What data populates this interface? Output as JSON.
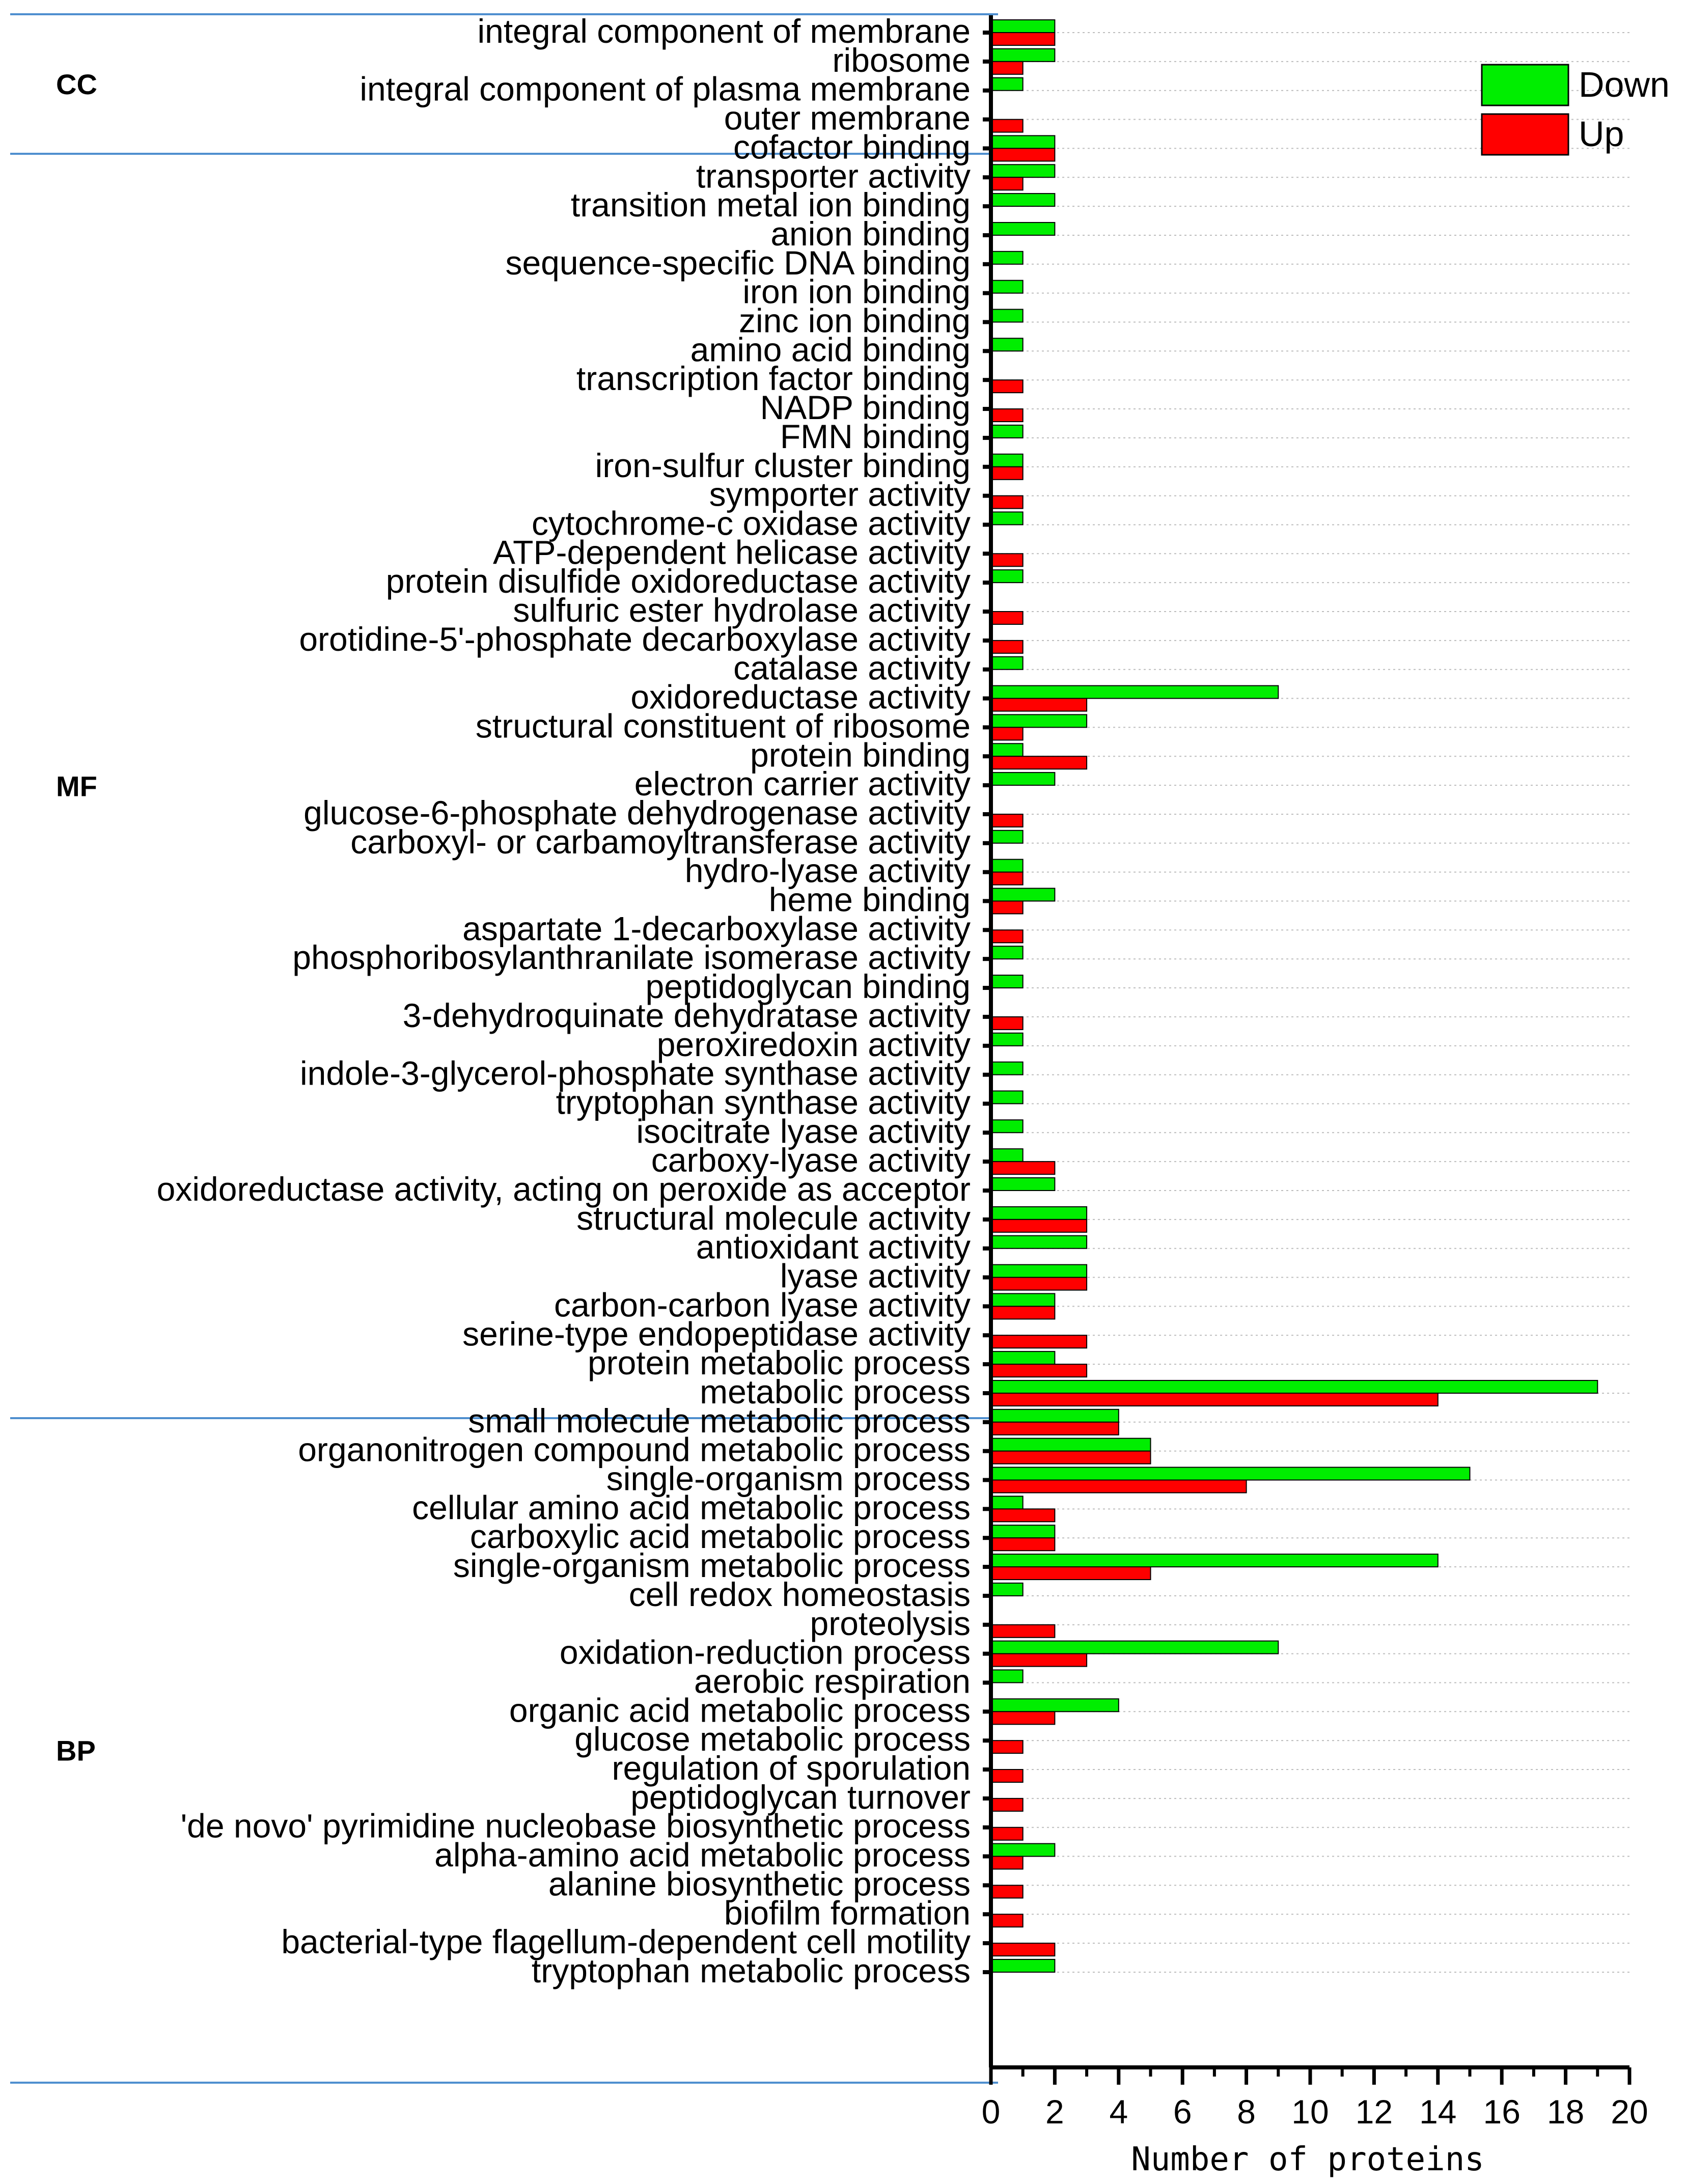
{
  "chart_data": {
    "type": "bar",
    "orientation": "horizontal",
    "xlabel": "Number of proteins",
    "xlim": [
      0,
      20
    ],
    "xticks": [
      0,
      2,
      4,
      6,
      8,
      10,
      12,
      14,
      16,
      18,
      20
    ],
    "legend": {
      "placement": "top-right",
      "entries": [
        {
          "name": "Down",
          "color": "#00ee00"
        },
        {
          "name": "Up",
          "color": "#ff0000"
        }
      ]
    },
    "series": [
      {
        "name": "Down",
        "color": "#00ee00"
      },
      {
        "name": "Up",
        "color": "#ff0000"
      }
    ],
    "groups": [
      {
        "name": "CC",
        "categories": [
          {
            "label": "integral component of membrane",
            "down": 2,
            "up": 2
          },
          {
            "label": "ribosome",
            "down": 2,
            "up": 1
          },
          {
            "label": "integral component of plasma membrane",
            "down": 1,
            "up": 0
          },
          {
            "label": "outer membrane",
            "down": 0,
            "up": 1
          }
        ]
      },
      {
        "name": "MF",
        "categories": [
          {
            "label": "cofactor binding",
            "down": 2,
            "up": 2
          },
          {
            "label": "transporter activity",
            "down": 2,
            "up": 1
          },
          {
            "label": "transition metal ion binding",
            "down": 2,
            "up": 0
          },
          {
            "label": "anion binding",
            "down": 2,
            "up": 0
          },
          {
            "label": "sequence-specific DNA binding",
            "down": 1,
            "up": 0
          },
          {
            "label": "iron ion binding",
            "down": 1,
            "up": 0
          },
          {
            "label": "zinc ion binding",
            "down": 1,
            "up": 0
          },
          {
            "label": "amino acid binding",
            "down": 1,
            "up": 0
          },
          {
            "label": "transcription factor binding",
            "down": 0,
            "up": 1
          },
          {
            "label": "NADP binding",
            "down": 0,
            "up": 1
          },
          {
            "label": "FMN binding",
            "down": 1,
            "up": 0
          },
          {
            "label": "iron-sulfur cluster binding",
            "down": 1,
            "up": 1
          },
          {
            "label": "symporter activity",
            "down": 0,
            "up": 1
          },
          {
            "label": "cytochrome-c oxidase activity",
            "down": 1,
            "up": 0
          },
          {
            "label": "ATP-dependent helicase activity",
            "down": 0,
            "up": 1
          },
          {
            "label": "protein disulfide oxidoreductase activity",
            "down": 1,
            "up": 0
          },
          {
            "label": "sulfuric ester hydrolase activity",
            "down": 0,
            "up": 1
          },
          {
            "label": "orotidine-5'-phosphate decarboxylase activity",
            "down": 0,
            "up": 1
          },
          {
            "label": "catalase activity",
            "down": 1,
            "up": 0
          },
          {
            "label": "oxidoreductase activity",
            "down": 9,
            "up": 3
          },
          {
            "label": "structural constituent of ribosome",
            "down": 3,
            "up": 1
          },
          {
            "label": "protein binding",
            "down": 1,
            "up": 3
          },
          {
            "label": "electron carrier activity",
            "down": 2,
            "up": 0
          },
          {
            "label": "glucose-6-phosphate dehydrogenase activity",
            "down": 0,
            "up": 1
          },
          {
            "label": "carboxyl- or carbamoyltransferase activity",
            "down": 1,
            "up": 0
          },
          {
            "label": "hydro-lyase activity",
            "down": 1,
            "up": 1
          },
          {
            "label": "heme binding",
            "down": 2,
            "up": 1
          },
          {
            "label": "aspartate 1-decarboxylase activity",
            "down": 0,
            "up": 1
          },
          {
            "label": "phosphoribosylanthranilate isomerase activity",
            "down": 1,
            "up": 0
          },
          {
            "label": "peptidoglycan binding",
            "down": 1,
            "up": 0
          },
          {
            "label": "3-dehydroquinate dehydratase activity",
            "down": 0,
            "up": 1
          },
          {
            "label": "peroxiredoxin activity",
            "down": 1,
            "up": 0
          },
          {
            "label": "indole-3-glycerol-phosphate synthase activity",
            "down": 1,
            "up": 0
          },
          {
            "label": "tryptophan synthase activity",
            "down": 1,
            "up": 0
          },
          {
            "label": "isocitrate lyase activity",
            "down": 1,
            "up": 0
          },
          {
            "label": "carboxy-lyase activity",
            "down": 1,
            "up": 2
          },
          {
            "label": "oxidoreductase activity, acting on peroxide as acceptor",
            "down": 2,
            "up": 0
          },
          {
            "label": "structural molecule activity",
            "down": 3,
            "up": 3
          },
          {
            "label": "antioxidant activity",
            "down": 3,
            "up": 0
          },
          {
            "label": "lyase activity",
            "down": 3,
            "up": 3
          },
          {
            "label": "carbon-carbon lyase activity",
            "down": 2,
            "up": 2
          },
          {
            "label": "serine-type endopeptidase activity",
            "down": 0,
            "up": 3
          }
        ]
      },
      {
        "name": "BP",
        "categories": [
          {
            "label": "protein metabolic process",
            "down": 2,
            "up": 3
          },
          {
            "label": "metabolic process",
            "down": 19,
            "up": 14
          },
          {
            "label": "small molecule metabolic process",
            "down": 4,
            "up": 4
          },
          {
            "label": "organonitrogen compound metabolic process",
            "down": 5,
            "up": 5
          },
          {
            "label": "single-organism process",
            "down": 15,
            "up": 8
          },
          {
            "label": "cellular amino acid metabolic process",
            "down": 1,
            "up": 2
          },
          {
            "label": "carboxylic acid metabolic process",
            "down": 2,
            "up": 2
          },
          {
            "label": "single-organism metabolic process",
            "down": 14,
            "up": 5
          },
          {
            "label": "cell redox homeostasis",
            "down": 1,
            "up": 0
          },
          {
            "label": "proteolysis",
            "down": 0,
            "up": 2
          },
          {
            "label": "oxidation-reduction process",
            "down": 9,
            "up": 3
          },
          {
            "label": "aerobic respiration",
            "down": 1,
            "up": 0
          },
          {
            "label": "organic acid metabolic process",
            "down": 4,
            "up": 2
          },
          {
            "label": "glucose metabolic process",
            "down": 0,
            "up": 1
          },
          {
            "label": "regulation of sporulation",
            "down": 0,
            "up": 1
          },
          {
            "label": "peptidoglycan turnover",
            "down": 0,
            "up": 1
          },
          {
            "label": "'de novo' pyrimidine nucleobase biosynthetic process",
            "down": 0,
            "up": 1
          },
          {
            "label": "alpha-amino acid metabolic process",
            "down": 2,
            "up": 1
          },
          {
            "label": "alanine biosynthetic process",
            "down": 0,
            "up": 1
          },
          {
            "label": "biofilm formation",
            "down": 0,
            "up": 1
          },
          {
            "label": "bacterial-type flagellum-dependent cell motility",
            "down": 0,
            "up": 2
          },
          {
            "label": "tryptophan metabolic process",
            "down": 2,
            "up": 0
          }
        ]
      }
    ]
  }
}
